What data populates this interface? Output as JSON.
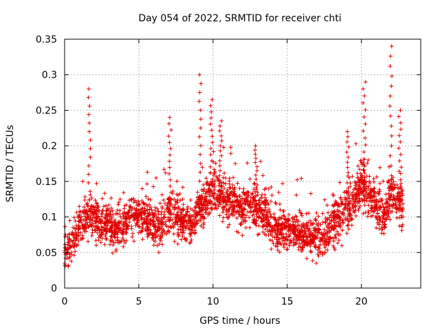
{
  "chart_data": {
    "type": "scatter",
    "title": "Day 054 of 2022, SRMTID for receiver chti",
    "xlabel": "GPS time / hours",
    "ylabel": "SRMTID / TECUs",
    "xlim": [
      0,
      24
    ],
    "ylim": [
      0,
      0.35
    ],
    "xticks": [
      "0",
      "5",
      "10",
      "15",
      "20"
    ],
    "yticks": [
      "0",
      "0.05",
      "0.1",
      "0.15",
      "0.2",
      "0.25",
      "0.3",
      "0.35"
    ],
    "grid": true,
    "marker": "+",
    "color": "#e00000",
    "trend": [
      [
        0.0,
        0.05
      ],
      [
        0.5,
        0.06
      ],
      [
        1.0,
        0.09
      ],
      [
        1.5,
        0.1
      ],
      [
        2.0,
        0.1
      ],
      [
        2.5,
        0.09
      ],
      [
        3.0,
        0.09
      ],
      [
        3.5,
        0.08
      ],
      [
        4.0,
        0.09
      ],
      [
        4.5,
        0.1
      ],
      [
        5.0,
        0.1
      ],
      [
        5.5,
        0.1
      ],
      [
        6.0,
        0.09
      ],
      [
        6.5,
        0.09
      ],
      [
        7.0,
        0.11
      ],
      [
        7.5,
        0.1
      ],
      [
        8.0,
        0.09
      ],
      [
        8.5,
        0.09
      ],
      [
        9.0,
        0.11
      ],
      [
        9.5,
        0.12
      ],
      [
        10.0,
        0.14
      ],
      [
        10.5,
        0.13
      ],
      [
        11.0,
        0.12
      ],
      [
        11.5,
        0.12
      ],
      [
        12.0,
        0.11
      ],
      [
        12.5,
        0.12
      ],
      [
        13.0,
        0.11
      ],
      [
        13.5,
        0.1
      ],
      [
        14.0,
        0.08
      ],
      [
        14.5,
        0.08
      ],
      [
        15.0,
        0.08
      ],
      [
        15.5,
        0.08
      ],
      [
        16.0,
        0.07
      ],
      [
        16.5,
        0.07
      ],
      [
        17.0,
        0.07
      ],
      [
        17.5,
        0.07
      ],
      [
        18.0,
        0.09
      ],
      [
        18.5,
        0.1
      ],
      [
        19.0,
        0.11
      ],
      [
        19.5,
        0.12
      ],
      [
        20.0,
        0.15
      ],
      [
        20.5,
        0.13
      ],
      [
        21.0,
        0.12
      ],
      [
        21.5,
        0.1
      ],
      [
        22.0,
        0.13
      ],
      [
        22.5,
        0.12
      ],
      [
        22.8,
        0.11
      ]
    ],
    "peaks": [
      {
        "x": 1.65,
        "y": 0.28
      },
      {
        "x": 7.1,
        "y": 0.24
      },
      {
        "x": 9.15,
        "y": 0.3
      },
      {
        "x": 9.9,
        "y": 0.265
      },
      {
        "x": 10.5,
        "y": 0.235
      },
      {
        "x": 12.9,
        "y": 0.2
      },
      {
        "x": 19.1,
        "y": 0.22
      },
      {
        "x": 20.2,
        "y": 0.29
      },
      {
        "x": 22.0,
        "y": 0.34
      },
      {
        "x": 22.6,
        "y": 0.25
      }
    ],
    "point_count": 2600
  }
}
